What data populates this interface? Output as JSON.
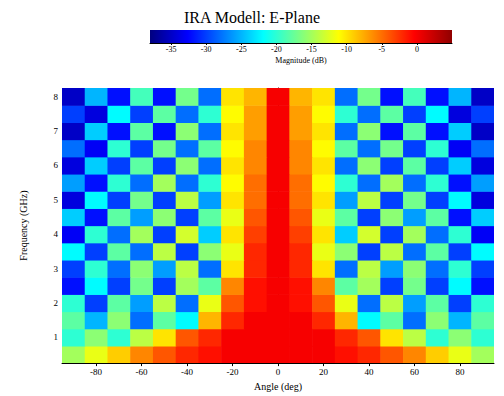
{
  "chart_data": {
    "type": "heatmap",
    "title": "IRA Modell: E-Plane",
    "x_label": "Angle (deg)",
    "y_label": "Frequency (GHz)",
    "x": [
      -90,
      -80,
      -70,
      -60,
      -50,
      -40,
      -30,
      -20,
      -10,
      0,
      10,
      20,
      30,
      40,
      50,
      60,
      70,
      80,
      90
    ],
    "y": [
      0.5,
      1.0,
      1.5,
      2.0,
      2.5,
      3.0,
      3.5,
      4.0,
      4.5,
      5.0,
      5.5,
      6.0,
      6.5,
      7.0,
      7.5,
      8.0
    ],
    "values": [
      [
        -15,
        -12,
        -9,
        -6,
        -4,
        -2,
        -1,
        0,
        0,
        0,
        0,
        0,
        -1,
        -2,
        -4,
        -6,
        -9,
        -12,
        -15
      ],
      [
        -20,
        -16,
        -20,
        -14,
        -10,
        -4,
        -2,
        0,
        0,
        0,
        0,
        0,
        -2,
        -4,
        -10,
        -14,
        -20,
        -16,
        -20
      ],
      [
        -18,
        -25,
        -16,
        -28,
        -18,
        -22,
        -8,
        -2,
        0,
        0,
        0,
        -2,
        -8,
        -22,
        -18,
        -28,
        -16,
        -25,
        -18
      ],
      [
        -20,
        -30,
        -18,
        -26,
        -14,
        -28,
        -12,
        -4,
        -1,
        0,
        -1,
        -4,
        -12,
        -28,
        -14,
        -26,
        -18,
        -30,
        -20
      ],
      [
        -32,
        -22,
        -30,
        -17,
        -30,
        -15,
        -18,
        -6,
        -1,
        0,
        -1,
        -6,
        -18,
        -15,
        -30,
        -17,
        -30,
        -22,
        -32
      ],
      [
        -30,
        -20,
        -28,
        -16,
        -26,
        -14,
        -28,
        -10,
        -2,
        0,
        -2,
        -10,
        -28,
        -14,
        -26,
        -16,
        -28,
        -20,
        -30
      ],
      [
        -22,
        -30,
        -18,
        -28,
        -14,
        -30,
        -16,
        -12,
        -2,
        0,
        -2,
        -12,
        -16,
        -30,
        -14,
        -28,
        -18,
        -30,
        -22
      ],
      [
        -33,
        -20,
        -28,
        -15,
        -30,
        -13,
        -24,
        -10,
        -3,
        0,
        -3,
        -10,
        -24,
        -13,
        -30,
        -15,
        -28,
        -20,
        -33
      ],
      [
        -24,
        -32,
        -18,
        -26,
        -16,
        -30,
        -18,
        -12,
        -4,
        0,
        -4,
        -12,
        -18,
        -30,
        -16,
        -26,
        -18,
        -32,
        -24
      ],
      [
        -34,
        -22,
        -30,
        -17,
        -30,
        -14,
        -26,
        -10,
        -5,
        0,
        -5,
        -10,
        -26,
        -14,
        -30,
        -17,
        -30,
        -22,
        -34
      ],
      [
        -26,
        -32,
        -20,
        -28,
        -15,
        -28,
        -20,
        -11,
        -5,
        0,
        -5,
        -11,
        -20,
        -28,
        -15,
        -28,
        -20,
        -32,
        -26
      ],
      [
        -34,
        -24,
        -30,
        -18,
        -30,
        -16,
        -28,
        -10,
        -6,
        0,
        -6,
        -10,
        -28,
        -16,
        -30,
        -18,
        -30,
        -24,
        -34
      ],
      [
        -28,
        -33,
        -20,
        -30,
        -17,
        -28,
        -18,
        -11,
        -6,
        0,
        -6,
        -11,
        -18,
        -28,
        -17,
        -30,
        -20,
        -33,
        -28
      ],
      [
        -35,
        -24,
        -32,
        -18,
        -32,
        -16,
        -28,
        -10,
        -7,
        0,
        -7,
        -10,
        -28,
        -16,
        -32,
        -18,
        -32,
        -24,
        -35
      ],
      [
        -30,
        -34,
        -22,
        -30,
        -18,
        -28,
        -20,
        -11,
        -7,
        0,
        -7,
        -11,
        -20,
        -28,
        -18,
        -30,
        -22,
        -34,
        -30
      ],
      [
        -35,
        -25,
        -32,
        -19,
        -32,
        -17,
        -28,
        -10,
        -8,
        0,
        -8,
        -10,
        -28,
        -17,
        -32,
        -19,
        -32,
        -25,
        -35
      ]
    ],
    "xlim": [
      -95,
      95
    ],
    "xticks": [
      -80,
      -60,
      -40,
      -20,
      0,
      20,
      40,
      60,
      80
    ],
    "ylim": [
      0.25,
      8.25
    ],
    "yticks": [
      1,
      2,
      3,
      4,
      5,
      6,
      7,
      8
    ],
    "colorbar": {
      "label": "Magnitude (dB)",
      "range": [
        -38,
        5
      ],
      "ticks": [
        -35,
        -30,
        -25,
        -20,
        -15,
        -10,
        -5,
        0
      ]
    }
  }
}
